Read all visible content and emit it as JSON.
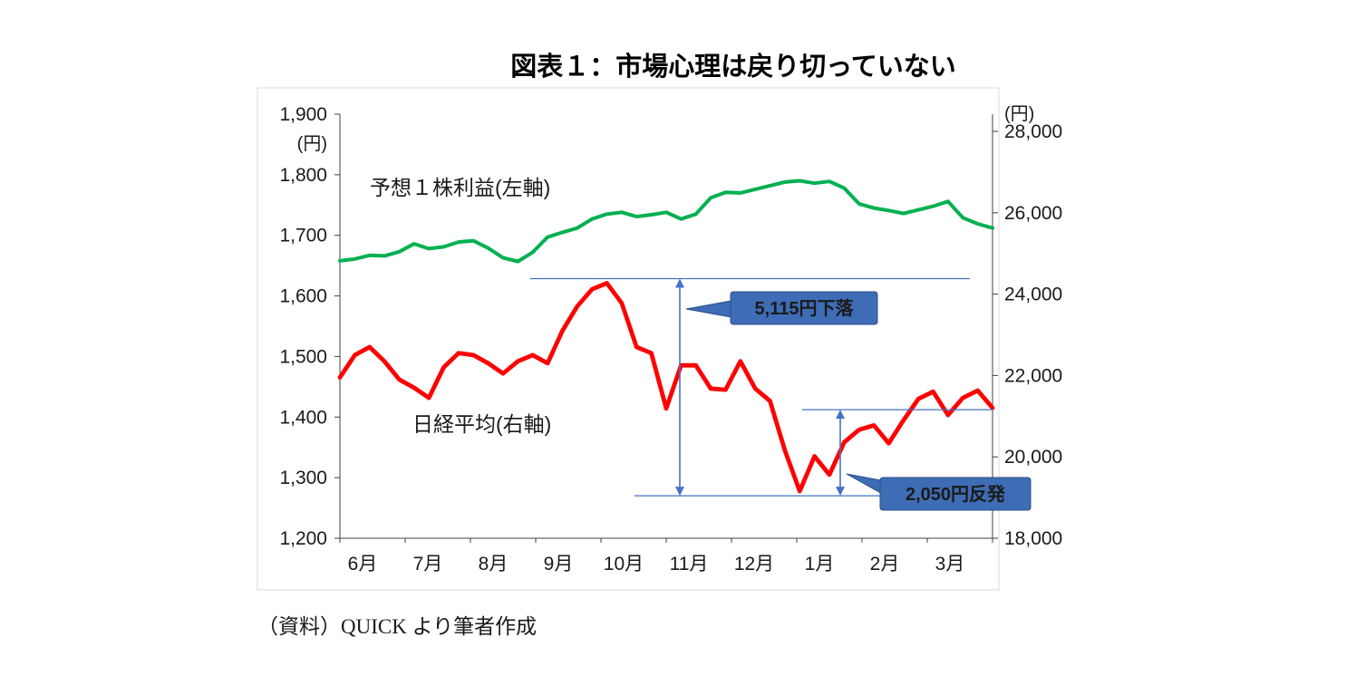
{
  "page": {
    "title": "図表１：市場心理は戻り切っていない",
    "source_note": "（資料）QUICK より筆者作成"
  },
  "chart_data": {
    "type": "line",
    "title": "図表１：市場心理は戻り切っていない",
    "grid": false,
    "legend_position": "on-chart-labels",
    "x_tick_labels": [
      "6月",
      "7月",
      "8月",
      "9月",
      "10月",
      "11月",
      "12月",
      "1月",
      "2月",
      "3月"
    ],
    "left_axis": {
      "unit": "(円)",
      "min": 1200,
      "max": 1900,
      "ticks": [
        1900,
        1800,
        1700,
        1600,
        1500,
        1400,
        1300,
        1200
      ]
    },
    "right_axis": {
      "unit": "(円)",
      "min": 18000,
      "max": 28000,
      "ticks": [
        28000,
        26000,
        24000,
        22000,
        20000,
        18000
      ]
    },
    "series": [
      {
        "name": "予想１株利益(左軸)",
        "axis": "left",
        "color": "#00B050",
        "values": [
          1658,
          1661,
          1667,
          1666,
          1673,
          1686,
          1678,
          1681,
          1689,
          1691,
          1679,
          1663,
          1657,
          1672,
          1697,
          1705,
          1712,
          1727,
          1735,
          1738,
          1731,
          1734,
          1738,
          1727,
          1735,
          1762,
          1771,
          1770,
          1776,
          1782,
          1788,
          1790,
          1786,
          1789,
          1778,
          1752,
          1745,
          1741,
          1736,
          1742,
          1748,
          1756,
          1729,
          1719,
          1712
        ]
      },
      {
        "name": "日経平均(右軸)",
        "axis": "right",
        "color": "#FF0000",
        "values": [
          21950,
          22500,
          22700,
          22350,
          21900,
          21700,
          21450,
          22200,
          22550,
          22500,
          22300,
          22050,
          22350,
          22500,
          22300,
          23100,
          23700,
          24120,
          24270,
          23780,
          22700,
          22550,
          21190,
          22250,
          22250,
          21680,
          21650,
          22350,
          21680,
          21375,
          20160,
          19155,
          20015,
          19562,
          20360,
          20666,
          20774,
          20333,
          20901,
          21426,
          21603,
          21026,
          21451,
          21630,
          21205
        ]
      }
    ],
    "annotations": {
      "color": "#4472C4",
      "callout_bg": "#3E6CB5",
      "callout_border": "#2C4F8A",
      "callout_text_color": "#FFFFFF",
      "peak_level": 24270,
      "trough_level": 19155,
      "rebound_level": 21205,
      "decline_label": "5,115円下落",
      "rebound_label": "2,050円反発"
    }
  }
}
